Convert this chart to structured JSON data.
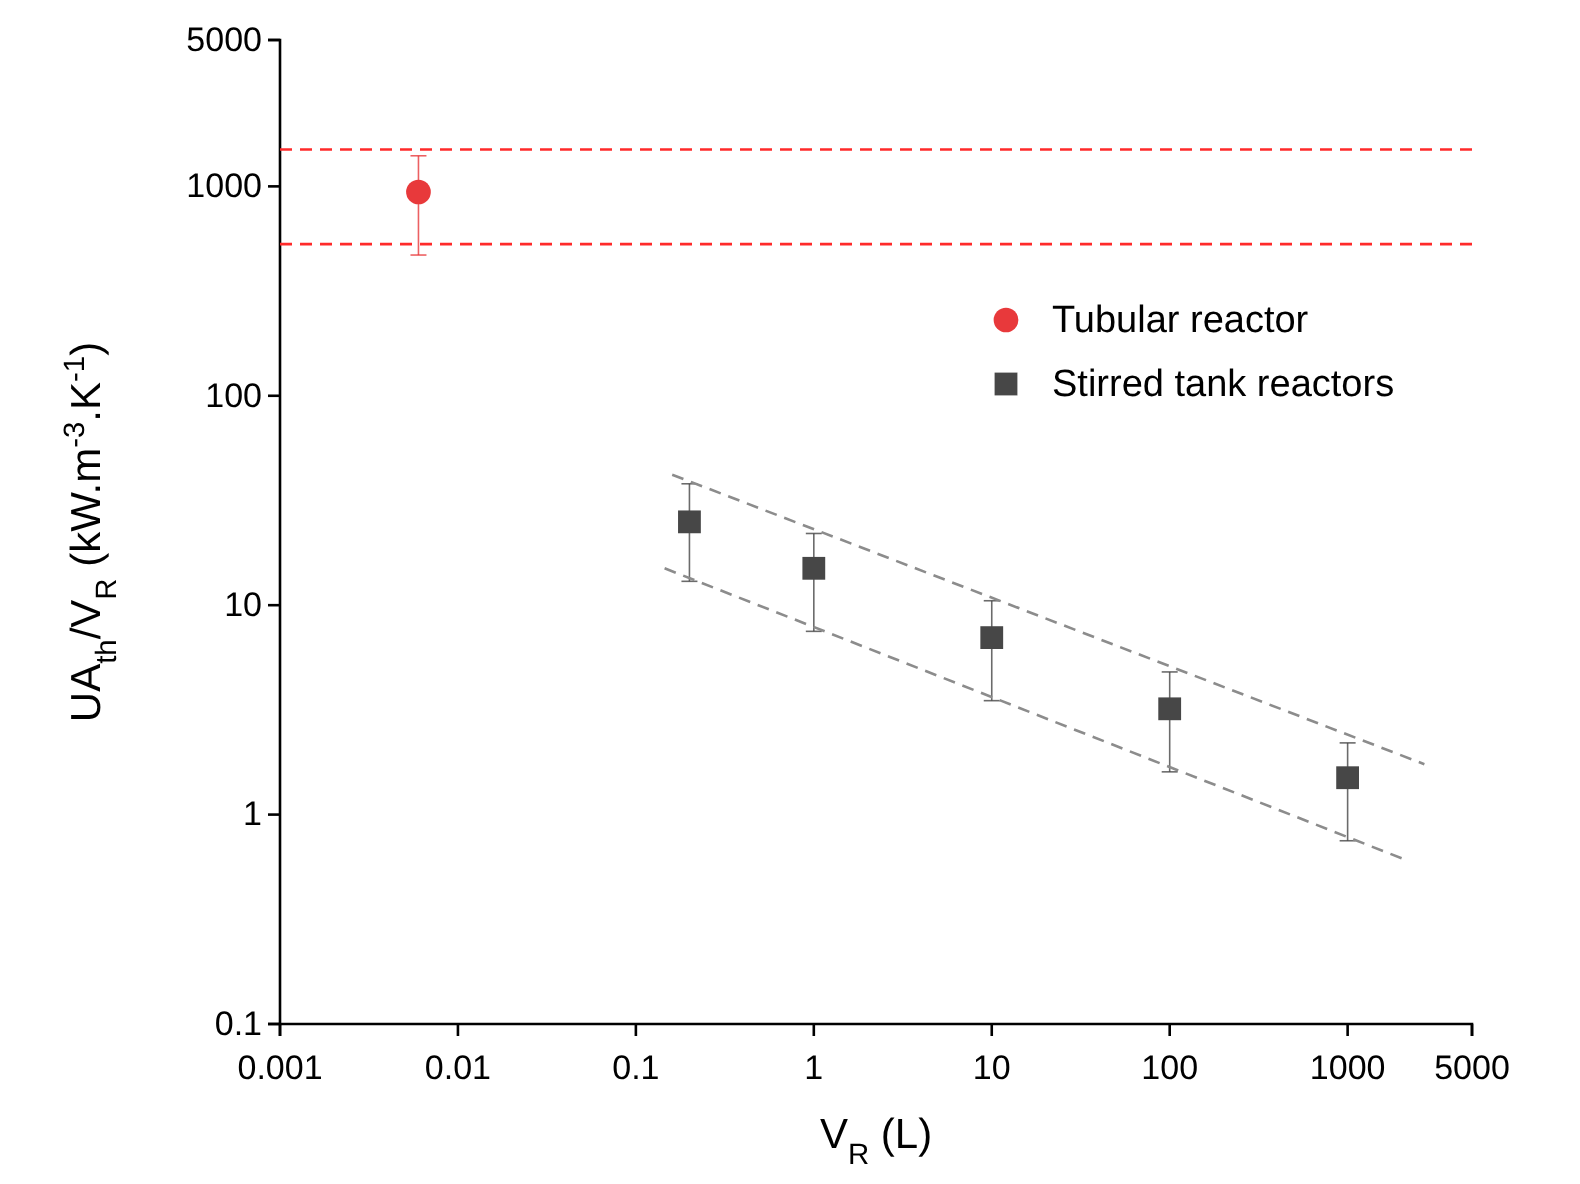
{
  "chart_data": {
    "type": "scatter",
    "xlabel": "V$_{R}$ (L)",
    "ylabel": "UA$_{th}$/V$_{R}$ (kW.m$^{-3}$.K$^{-1}$)",
    "log": "xy",
    "xlim": [
      0.001,
      5000
    ],
    "ylim": [
      0.1,
      5000
    ],
    "xticks": [
      0.001,
      0.01,
      0.1,
      1,
      10,
      100,
      1000,
      5000
    ],
    "yticks": [
      0.1,
      1,
      10,
      100,
      1000,
      5000
    ],
    "grid": false,
    "legend": "top right",
    "series": [
      {
        "name": "Tubular reactor",
        "marker": "circle",
        "color": "#e8393b",
        "x": [
          0.006
        ],
        "values": [
          940
        ],
        "errors": [
          [
            470,
            1400
          ]
        ]
      },
      {
        "name": "Stirred tank reactors",
        "marker": "square",
        "color": "#474747",
        "x": [
          0.2,
          1,
          10,
          100,
          1000
        ],
        "values": [
          25,
          15,
          7,
          3.2,
          1.5
        ],
        "errors": [
          [
            13,
            38
          ],
          [
            7.5,
            22
          ],
          [
            3.5,
            10.5
          ],
          [
            1.6,
            4.8
          ],
          [
            0.75,
            2.2
          ]
        ]
      },
      {
        "type": "line",
        "color": "#8c8c8c",
        "line_style": "dashed",
        "marker": "none",
        "x": [
          0.16,
          2700
        ],
        "values": [
          42,
          1.74
        ]
      },
      {
        "type": "line",
        "color": "#8c8c8c",
        "line_style": "dashed",
        "marker": "none",
        "x": [
          0.145,
          2200
        ],
        "values": [
          15,
          0.6
        ]
      }
    ],
    "ref_lines": [
      {
        "axis": "y",
        "value": 1500,
        "color": "#ff2a2a",
        "line_style": "dashed"
      },
      {
        "axis": "y",
        "value": 530,
        "color": "#ff2a2a",
        "line_style": "dashed"
      }
    ]
  }
}
